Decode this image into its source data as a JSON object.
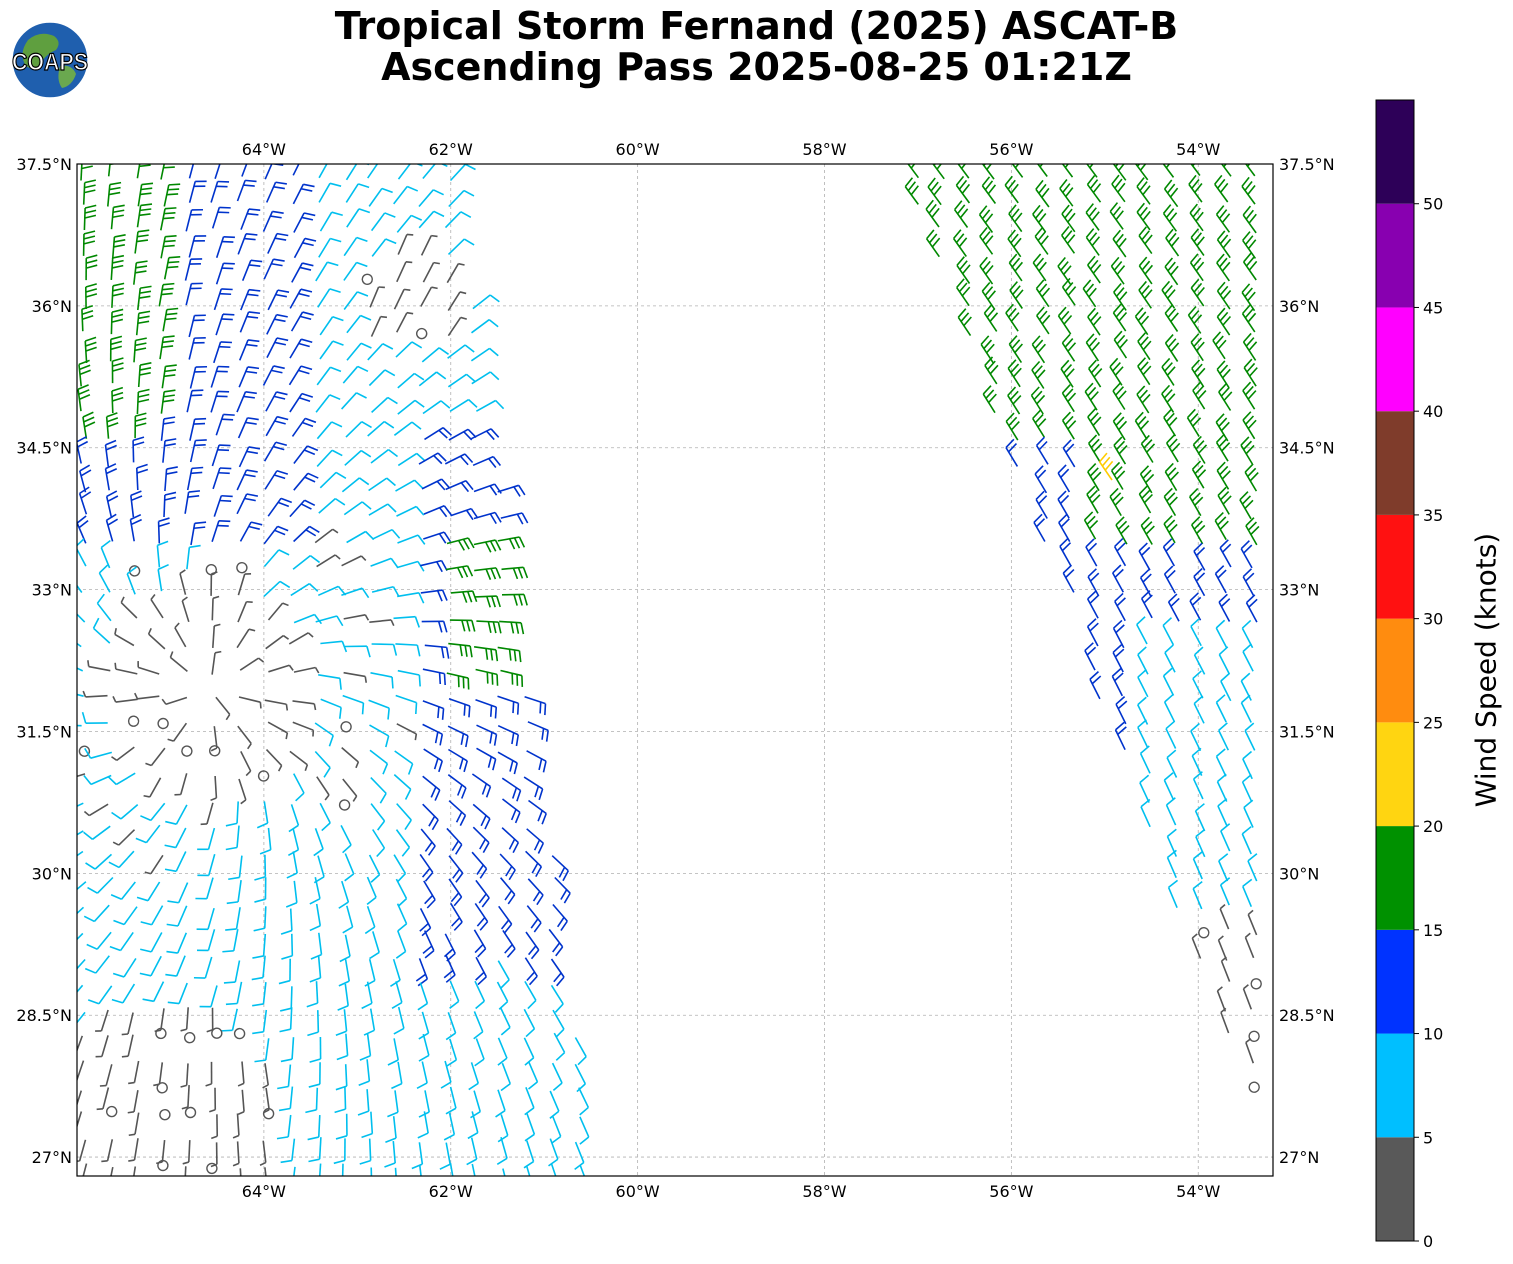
{
  "title": {
    "line1": "Tropical Storm Fernand (2025) ASCAT-B",
    "line2": "Ascending Pass 2025-08-25 01:21Z"
  },
  "logo": {
    "text": "COAPS",
    "icon": "globe-icon"
  },
  "map": {
    "lon_ticks": [
      "64°W",
      "62°W",
      "60°W",
      "58°W",
      "56°W",
      "54°W"
    ],
    "lat_ticks": [
      "37.5°N",
      "36°N",
      "34.5°N",
      "33°N",
      "31.5°N",
      "30°N",
      "28.5°N",
      "27°N"
    ],
    "lon_values": [
      -64,
      -62,
      -60,
      -58,
      -56,
      -54
    ],
    "lat_values": [
      37.5,
      36,
      34.5,
      33,
      31.5,
      30,
      28.5,
      27
    ],
    "lon_range": [
      -66.0,
      -53.2
    ],
    "lat_range": [
      26.8,
      37.5
    ],
    "grid": true
  },
  "colorbar": {
    "label": "Wind Speed (knots)",
    "ticks": [
      "0",
      "5",
      "10",
      "15",
      "20",
      "25",
      "30",
      "35",
      "40",
      "45",
      "50"
    ],
    "bins": [
      {
        "min": 0,
        "max": 5,
        "color": "#595959"
      },
      {
        "min": 5,
        "max": 10,
        "color": "#00bfff"
      },
      {
        "min": 10,
        "max": 15,
        "color": "#0033ff"
      },
      {
        "min": 15,
        "max": 20,
        "color": "#009100"
      },
      {
        "min": 20,
        "max": 25,
        "color": "#ffd511"
      },
      {
        "min": 25,
        "max": 30,
        "color": "#ff8c0f"
      },
      {
        "min": 30,
        "max": 35,
        "color": "#ff1111"
      },
      {
        "min": 35,
        "max": 40,
        "color": "#7f3c2b"
      },
      {
        "min": 40,
        "max": 45,
        "color": "#ff00ff"
      },
      {
        "min": 45,
        "max": 50,
        "color": "#8800b0"
      },
      {
        "min": 50,
        "max": 55,
        "color": "#2d0058"
      }
    ]
  },
  "barb_colors": {
    "calm": "#555555",
    "light": "#00bfee",
    "moderate": "#0033cc",
    "fresh": "#008800",
    "strong": "#ffcc00"
  }
}
